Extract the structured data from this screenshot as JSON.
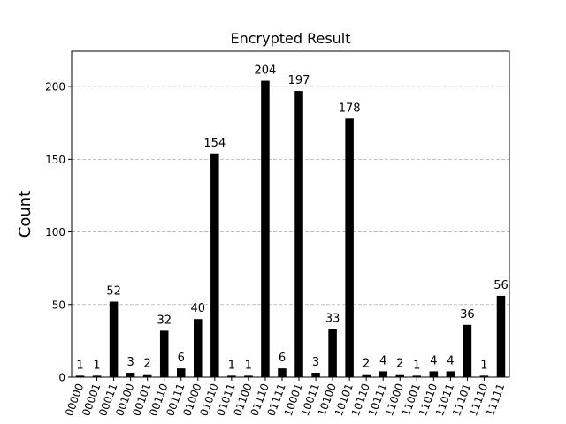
{
  "chart_data": {
    "type": "bar",
    "title": "Encrypted Result",
    "xlabel": "",
    "ylabel": "Count",
    "ylim": [
      0,
      224.4
    ],
    "yticks": [
      0,
      50,
      100,
      150,
      200
    ],
    "grid": "y-dashed",
    "bar_color": "#000000",
    "grid_color": "#b0b0b0",
    "categories": [
      "00000",
      "00001",
      "00011",
      "00100",
      "00101",
      "00110",
      "00111",
      "01000",
      "01010",
      "01011",
      "01100",
      "01110",
      "01111",
      "10001",
      "10011",
      "10100",
      "10101",
      "10110",
      "10111",
      "11000",
      "11001",
      "11010",
      "11011",
      "11101",
      "11110",
      "11111"
    ],
    "values": [
      1,
      1,
      52,
      3,
      2,
      32,
      6,
      40,
      154,
      1,
      1,
      204,
      6,
      197,
      3,
      33,
      178,
      2,
      4,
      2,
      1,
      4,
      4,
      36,
      1,
      56
    ]
  }
}
